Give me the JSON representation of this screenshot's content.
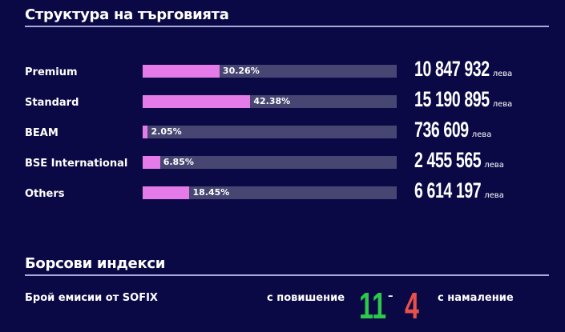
{
  "section1": {
    "title": "Структура на търговията"
  },
  "chart_data": {
    "type": "bar",
    "categories": [
      "Premium",
      "Standard",
      "BEAM",
      "BSE International",
      "Others"
    ],
    "values": [
      30.26,
      42.38,
      2.05,
      6.85,
      18.45
    ],
    "percent_labels": [
      "30.26%",
      "42.38%",
      "2.05%",
      "6.85%",
      "18.45%"
    ],
    "amounts": [
      "10 847 932",
      "15 190 895",
      "736 609",
      "2 455 565",
      "6 614 197"
    ],
    "unit": "лева",
    "xlim": [
      0,
      100
    ],
    "colors": {
      "fill": "#e57be9",
      "track": "#474673"
    }
  },
  "section2": {
    "title": "Борсови индекси",
    "sofix_label": "Брой емисии от SOFIX",
    "up_label": "с повишение",
    "up_count": "11",
    "dash": "–",
    "down_count": "4",
    "down_label": "с намаление",
    "up_color": "#2ec94a",
    "down_color": "#e8504a"
  }
}
